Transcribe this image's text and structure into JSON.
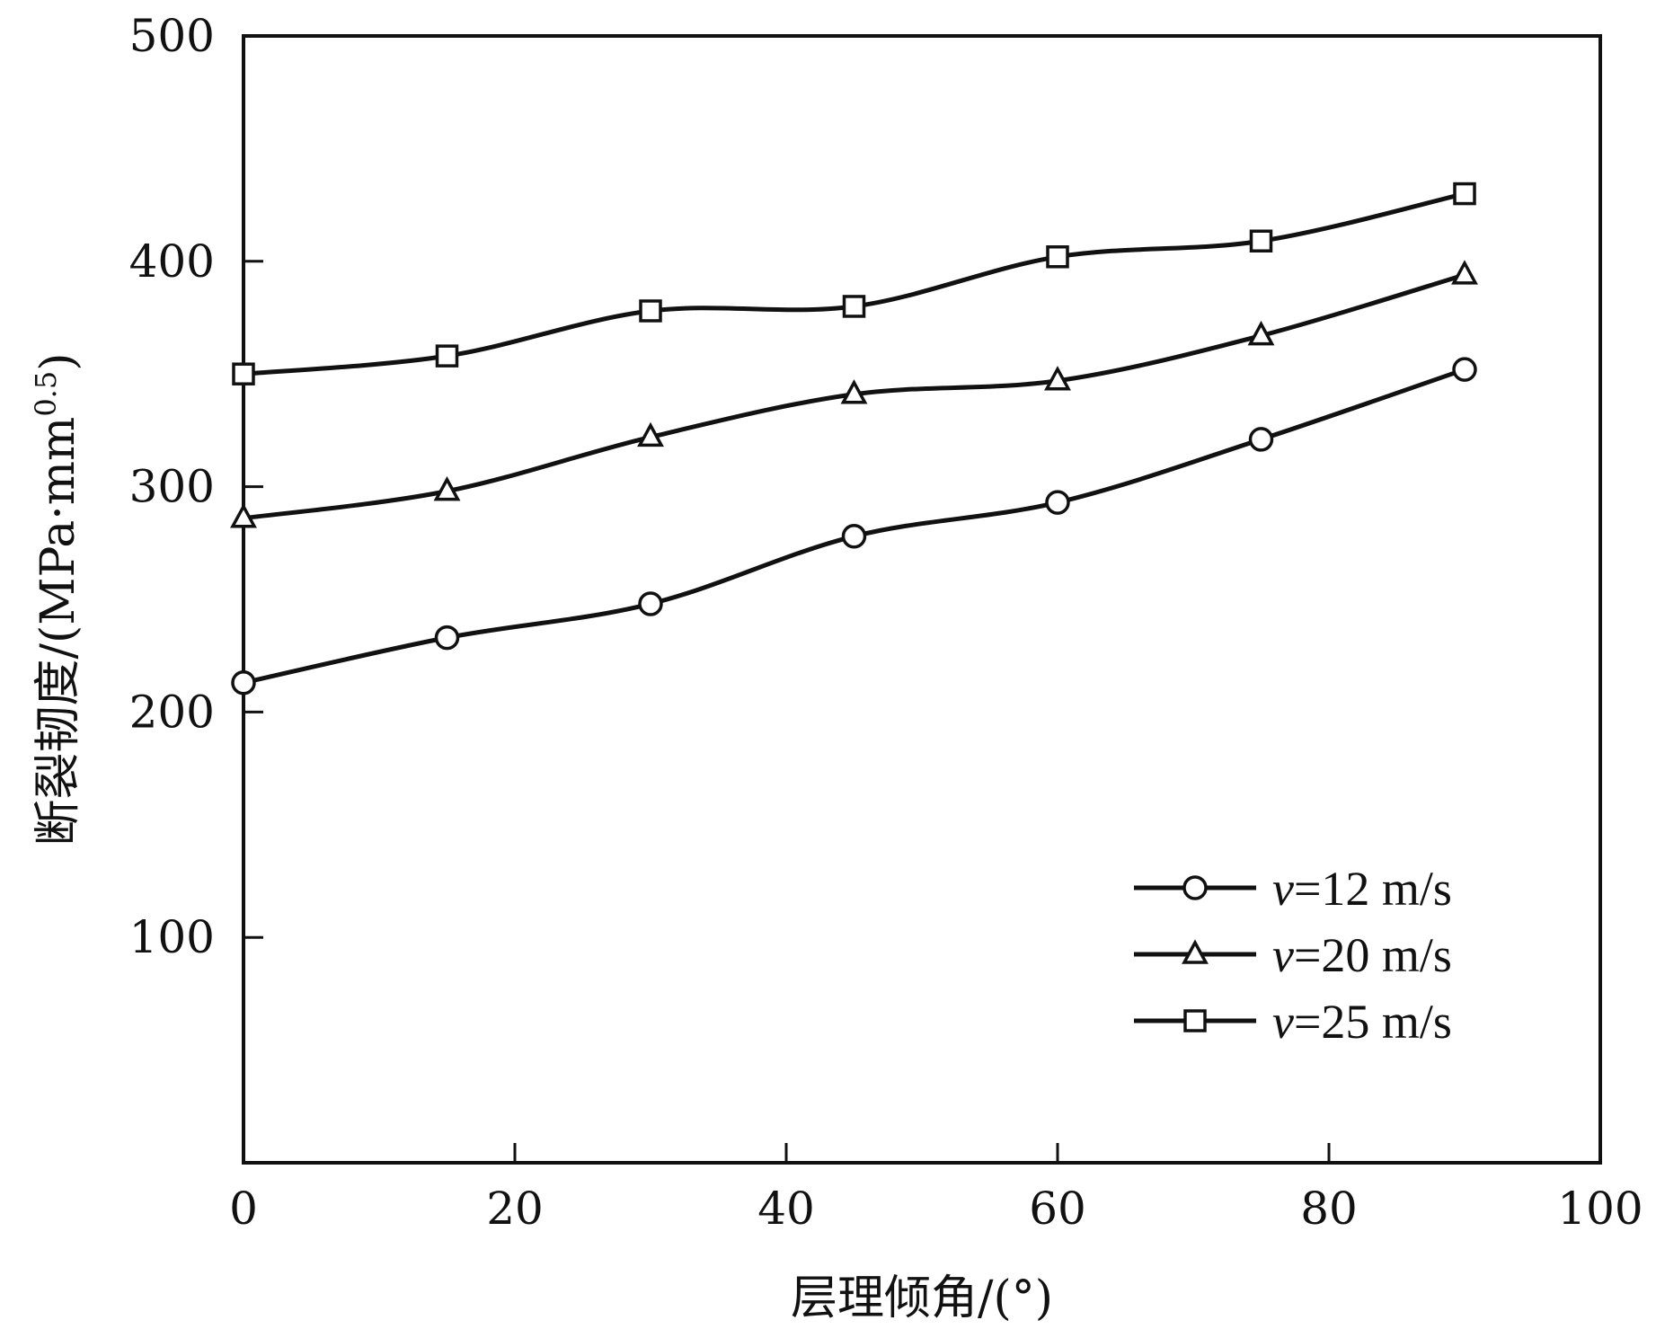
{
  "chart_data": {
    "type": "line",
    "title": "",
    "xlabel": "层理倾角/(°)",
    "ylabel": "断裂韧度/(MPa·mm",
    "ylabel_sup": "0.5",
    "ylabel_close": ")",
    "xlim": [
      0,
      100
    ],
    "ylim": [
      0,
      500
    ],
    "xticks": [
      0,
      20,
      40,
      60,
      80,
      100
    ],
    "yticks": [
      100,
      200,
      300,
      400,
      500
    ],
    "x": [
      0,
      15,
      30,
      45,
      60,
      75,
      90
    ],
    "grid": false,
    "legend_position": "lower-right",
    "series": [
      {
        "name": "v=12 m/s",
        "prefix": "v",
        "label": "=12 m/s",
        "marker": "circle",
        "values": [
          213,
          233,
          248,
          278,
          293,
          321,
          352
        ]
      },
      {
        "name": "v=20 m/s",
        "prefix": "v",
        "label": "=20 m/s",
        "marker": "triangle",
        "values": [
          286,
          298,
          322,
          341,
          347,
          367,
          394
        ]
      },
      {
        "name": "v=25 m/s",
        "prefix": "v",
        "label": "=25 m/s",
        "marker": "square",
        "values": [
          350,
          358,
          378,
          380,
          402,
          409,
          430
        ]
      }
    ]
  }
}
